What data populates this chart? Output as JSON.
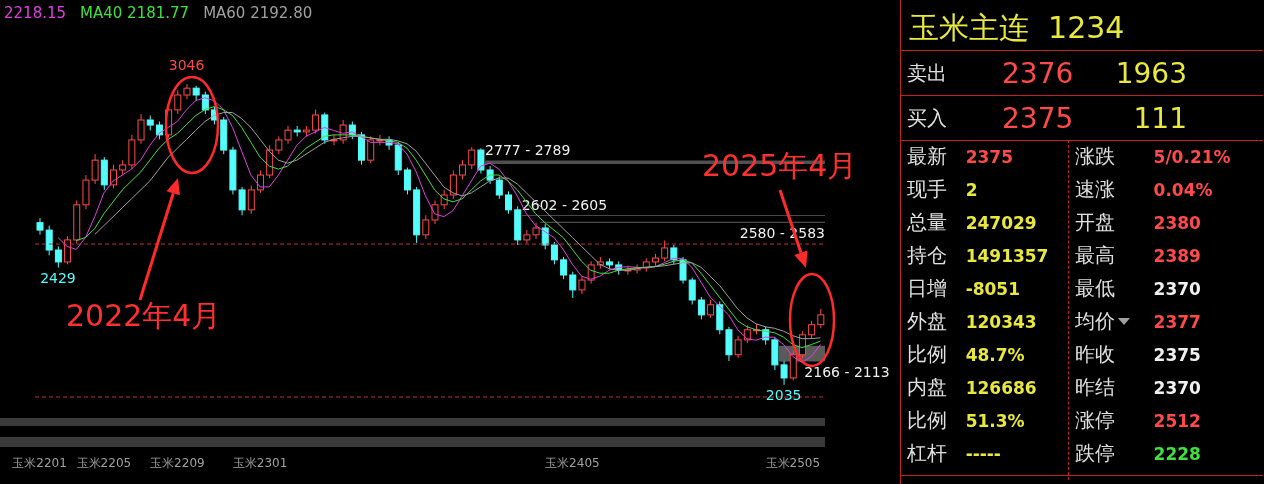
{
  "chart_data": [
    {
      "type": "candlestick",
      "categories": [
        "玉米2201",
        null,
        null,
        null,
        null,
        null,
        null,
        "玉米2205",
        null,
        null,
        null,
        null,
        null,
        null,
        null,
        "玉米2209",
        null,
        null,
        null,
        null,
        null,
        null,
        null,
        null,
        "玉米2301",
        null,
        null,
        null,
        null,
        null,
        null,
        null,
        null,
        null,
        null,
        null,
        null,
        null,
        null,
        null,
        null,
        null,
        null,
        null,
        null,
        null,
        null,
        null,
        null,
        null,
        null,
        null,
        null,
        null,
        null,
        null,
        null,
        null,
        "玉米2405",
        null,
        null,
        null,
        null,
        null,
        null,
        null,
        null,
        null,
        null,
        null,
        null,
        null,
        null,
        null,
        null,
        null,
        null,
        null,
        null,
        null,
        null,
        null,
        "玉米2505",
        null,
        null,
        null
      ],
      "ohlc": [
        [
          2580,
          2595,
          2540,
          2555
        ],
        [
          2555,
          2570,
          2470,
          2488
        ],
        [
          2488,
          2500,
          2429,
          2448
        ],
        [
          2448,
          2535,
          2440,
          2522
        ],
        [
          2522,
          2655,
          2510,
          2640
        ],
        [
          2640,
          2740,
          2625,
          2723
        ],
        [
          2723,
          2810,
          2710,
          2790
        ],
        [
          2790,
          2800,
          2690,
          2707
        ],
        [
          2707,
          2775,
          2695,
          2757
        ],
        [
          2757,
          2790,
          2740,
          2774
        ],
        [
          2774,
          2875,
          2760,
          2858
        ],
        [
          2858,
          2945,
          2845,
          2925
        ],
        [
          2925,
          2940,
          2890,
          2908
        ],
        [
          2908,
          2920,
          2860,
          2875
        ],
        [
          2875,
          2975,
          2865,
          2959
        ],
        [
          2959,
          3025,
          2945,
          3009
        ],
        [
          3009,
          3046,
          2995,
          3032
        ],
        [
          3032,
          3040,
          2990,
          3009
        ],
        [
          3009,
          3020,
          2945,
          2959
        ],
        [
          2959,
          2970,
          2910,
          2925
        ],
        [
          2925,
          2935,
          2810,
          2824
        ],
        [
          2824,
          2835,
          2675,
          2690
        ],
        [
          2690,
          2700,
          2605,
          2623
        ],
        [
          2623,
          2705,
          2610,
          2690
        ],
        [
          2690,
          2755,
          2680,
          2740
        ],
        [
          2740,
          2840,
          2730,
          2824
        ],
        [
          2824,
          2870,
          2810,
          2858
        ],
        [
          2858,
          2905,
          2845,
          2891
        ],
        [
          2891,
          2905,
          2870,
          2885
        ],
        [
          2885,
          2905,
          2870,
          2891
        ],
        [
          2891,
          2960,
          2880,
          2942
        ],
        [
          2942,
          2950,
          2845,
          2858
        ],
        [
          2858,
          2875,
          2840,
          2858
        ],
        [
          2858,
          2925,
          2845,
          2908
        ],
        [
          2908,
          2920,
          2860,
          2875
        ],
        [
          2875,
          2885,
          2775,
          2790
        ],
        [
          2790,
          2870,
          2780,
          2858
        ],
        [
          2858,
          2875,
          2840,
          2858
        ],
        [
          2858,
          2870,
          2825,
          2841
        ],
        [
          2841,
          2850,
          2740,
          2757
        ],
        [
          2757,
          2765,
          2675,
          2690
        ],
        [
          2690,
          2700,
          2512,
          2539
        ],
        [
          2539,
          2605,
          2525,
          2589
        ],
        [
          2589,
          2655,
          2575,
          2640
        ],
        [
          2640,
          2690,
          2625,
          2673
        ],
        [
          2673,
          2755,
          2660,
          2740
        ],
        [
          2740,
          2790,
          2725,
          2774
        ],
        [
          2774,
          2834,
          2760,
          2824
        ],
        [
          2824,
          2830,
          2745,
          2757
        ],
        [
          2757,
          2770,
          2710,
          2723
        ],
        [
          2723,
          2735,
          2660,
          2673
        ],
        [
          2673,
          2685,
          2610,
          2623
        ],
        [
          2623,
          2635,
          2505,
          2522
        ],
        [
          2522,
          2555,
          2510,
          2539
        ],
        [
          2539,
          2580,
          2525,
          2562
        ],
        [
          2562,
          2575,
          2490,
          2505
        ],
        [
          2505,
          2515,
          2440,
          2455
        ],
        [
          2455,
          2465,
          2390,
          2404
        ],
        [
          2404,
          2415,
          2327,
          2354
        ],
        [
          2354,
          2400,
          2340,
          2387
        ],
        [
          2387,
          2450,
          2375,
          2438
        ],
        [
          2438,
          2465,
          2425,
          2448
        ],
        [
          2448,
          2460,
          2425,
          2438
        ],
        [
          2438,
          2450,
          2405,
          2421
        ],
        [
          2421,
          2435,
          2405,
          2421
        ],
        [
          2421,
          2440,
          2410,
          2428
        ],
        [
          2428,
          2460,
          2415,
          2448
        ],
        [
          2448,
          2475,
          2435,
          2461
        ],
        [
          2461,
          2520,
          2450,
          2495
        ],
        [
          2495,
          2505,
          2440,
          2455
        ],
        [
          2455,
          2465,
          2375,
          2387
        ],
        [
          2387,
          2395,
          2305,
          2320
        ],
        [
          2320,
          2330,
          2255,
          2270
        ],
        [
          2270,
          2320,
          2260,
          2304
        ],
        [
          2304,
          2315,
          2205,
          2220
        ],
        [
          2220,
          2230,
          2115,
          2136
        ],
        [
          2136,
          2200,
          2125,
          2186
        ],
        [
          2186,
          2235,
          2175,
          2220
        ],
        [
          2220,
          2240,
          2205,
          2220
        ],
        [
          2220,
          2230,
          2170,
          2186
        ],
        [
          2186,
          2195,
          2085,
          2102
        ],
        [
          2102,
          2115,
          2035,
          2058
        ],
        [
          2058,
          2150,
          2050,
          2136
        ],
        [
          2136,
          2215,
          2125,
          2203
        ],
        [
          2203,
          2250,
          2190,
          2237
        ],
        [
          2237,
          2290,
          2225,
          2270
        ]
      ],
      "series": [
        {
          "name": "2218.15",
          "type": "line",
          "color": "#e040e0",
          "values": [
            null,
            null,
            2530,
            2500,
            2490,
            2530,
            2600,
            2680,
            2720,
            2740,
            2760,
            2790,
            2840,
            2880,
            2900,
            2920,
            2960,
            2990,
            3000,
            2990,
            2960,
            2900,
            2820,
            2740,
            2700,
            2700,
            2740,
            2790,
            2840,
            2870,
            2885,
            2900,
            2890,
            2880,
            2885,
            2870,
            2850,
            2850,
            2850,
            2845,
            2810,
            2750,
            2670,
            2610,
            2600,
            2620,
            2670,
            2720,
            2770,
            2780,
            2760,
            2720,
            2670,
            2610,
            2570,
            2550,
            2530,
            2490,
            2440,
            2400,
            2390,
            2400,
            2420,
            2430,
            2432,
            2430,
            2428,
            2432,
            2445,
            2460,
            2460,
            2430,
            2380,
            2330,
            2300,
            2270,
            2220,
            2190,
            2185,
            2195,
            2195,
            2170,
            2130,
            2110,
            2130,
            2170
          ]
        },
        {
          "name": "MA40 2181.77",
          "type": "line",
          "color": "#40e040",
          "values": [
            null,
            null,
            null,
            null,
            2520,
            2530,
            2560,
            2610,
            2650,
            2690,
            2720,
            2750,
            2790,
            2830,
            2860,
            2880,
            2910,
            2940,
            2960,
            2970,
            2960,
            2940,
            2900,
            2850,
            2800,
            2770,
            2760,
            2770,
            2800,
            2830,
            2850,
            2870,
            2875,
            2875,
            2875,
            2870,
            2865,
            2860,
            2855,
            2850,
            2830,
            2790,
            2740,
            2690,
            2660,
            2650,
            2660,
            2690,
            2720,
            2740,
            2740,
            2720,
            2690,
            2650,
            2610,
            2580,
            2555,
            2530,
            2490,
            2450,
            2420,
            2410,
            2410,
            2420,
            2425,
            2428,
            2430,
            2432,
            2440,
            2450,
            2455,
            2445,
            2410,
            2370,
            2330,
            2290,
            2250,
            2230,
            2220,
            2215,
            2210,
            2195,
            2170,
            2160,
            2170,
            2182
          ]
        },
        {
          "name": "MA60 2192.80",
          "type": "line",
          "color": "#a0a0a0",
          "values": [
            null,
            null,
            null,
            null,
            null,
            null,
            2540,
            2570,
            2600,
            2630,
            2660,
            2690,
            2720,
            2760,
            2800,
            2830,
            2860,
            2890,
            2920,
            2940,
            2950,
            2950,
            2930,
            2900,
            2860,
            2820,
            2790,
            2780,
            2790,
            2810,
            2830,
            2850,
            2860,
            2865,
            2870,
            2870,
            2865,
            2860,
            2860,
            2855,
            2845,
            2820,
            2780,
            2740,
            2700,
            2680,
            2670,
            2680,
            2700,
            2720,
            2730,
            2730,
            2710,
            2680,
            2650,
            2620,
            2590,
            2560,
            2530,
            2500,
            2470,
            2440,
            2425,
            2420,
            2420,
            2425,
            2430,
            2432,
            2435,
            2440,
            2445,
            2445,
            2430,
            2400,
            2370,
            2330,
            2290,
            2260,
            2240,
            2230,
            2225,
            2215,
            2200,
            2190,
            2190,
            2193
          ]
        }
      ],
      "bands": [
        {
          "axis": "y",
          "from": 2777,
          "to": 2789,
          "label": "2777 - 2789",
          "color": "#505050"
        },
        {
          "axis": "y",
          "from": 2602,
          "to": 2605,
          "label": "2602 - 2605",
          "color": "#606060"
        },
        {
          "axis": "y",
          "from": 2580,
          "to": 2583,
          "label": "2580 - 2583",
          "color": "#606060"
        },
        {
          "axis": "y",
          "from": 2113,
          "to": 2166,
          "label": "2166 - 2113",
          "color": "#5a5a5a"
        }
      ],
      "ref_lines": [
        {
          "axis": "y",
          "value": 2508,
          "color": "#c03030",
          "line_style": "dashed"
        },
        {
          "axis": "y",
          "value": 1994,
          "color": "#c03030",
          "line_style": "dashed"
        }
      ],
      "annotations": [
        {
          "text": "3046",
          "y": 3046
        },
        {
          "text": "2429",
          "y": 2429
        },
        {
          "text": "2035",
          "y": 2035
        },
        "2022年4月",
        "2025年4月"
      ],
      "legend": "top left"
    },
    {
      "type": "other",
      "title": "玉米主连  1234",
      "annotations": [
        "卖出",
        "2376",
        "1963",
        "买入",
        "2375",
        "111",
        "最新",
        "2375",
        "涨跌",
        "5/0.21%",
        "现手",
        "2",
        "速涨",
        "0.04%",
        "总量",
        "247029",
        "开盘",
        "2380",
        "持仓",
        "1491357",
        "最高",
        "2389",
        "日增",
        "-8051",
        "最低",
        "2370",
        "外盘",
        "120343",
        "均价",
        "2377",
        "比例",
        "48.7%",
        "昨收",
        "2375",
        "内盘",
        "126686",
        "昨结",
        "2370",
        "比例",
        "51.3%",
        "涨停",
        "2512",
        "杠杆",
        "-----",
        "跌停",
        "2228"
      ],
      "colors": [
        "#e0e0e0",
        "#ff4a4a",
        "#e8e840",
        "#e0e0e0",
        "#ff4a4a",
        "#e8e840",
        "#e0e0e0",
        "#ff4a4a",
        "#e0e0e0",
        "#ff4a4a",
        "#e0e0e0",
        "#e8e840",
        "#e0e0e0",
        "#ff4a4a",
        "#e0e0e0",
        "#e8e840",
        "#e0e0e0",
        "#ff4a4a",
        "#e0e0e0",
        "#e8e840",
        "#e0e0e0",
        "#ff4a4a",
        "#e0e0e0",
        "#e8e840",
        "#e0e0e0",
        "#f0f0f0",
        "#e0e0e0",
        "#e8e840",
        "#e0e0e0",
        "#ff4a4a",
        "#e0e0e0",
        "#e8e840",
        "#e0e0e0",
        "#f0f0f0",
        "#e0e0e0",
        "#e8e840",
        "#e0e0e0",
        "#f0f0f0",
        "#e0e0e0",
        "#e8e840",
        "#e0e0e0",
        "#ff4a4a",
        "#e0e0e0",
        "#e8e840",
        "#e0e0e0",
        "#40e040"
      ]
    }
  ]
}
